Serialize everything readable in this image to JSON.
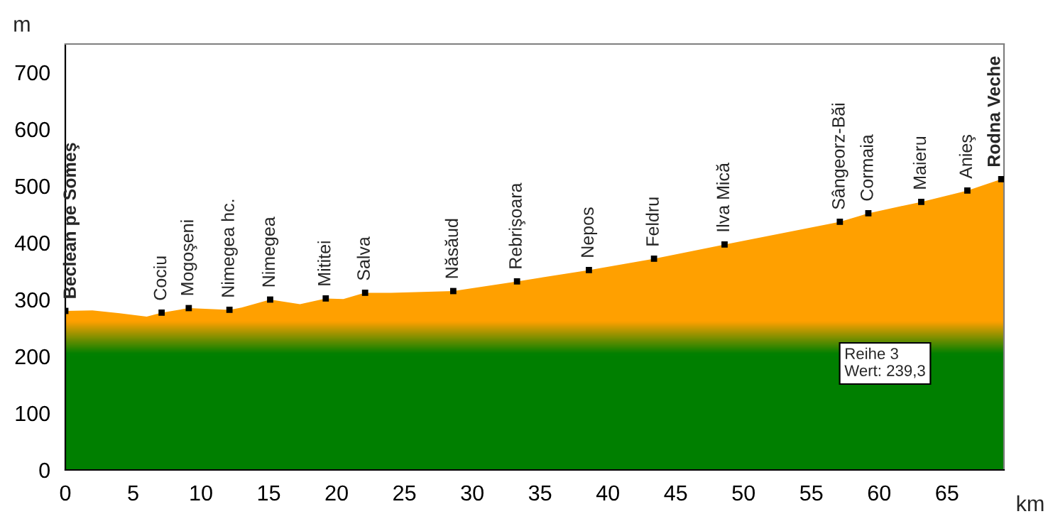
{
  "chart_data": {
    "type": "area",
    "xlabel": "km",
    "ylabel": "m",
    "xlim": [
      0,
      69.2
    ],
    "ylim": [
      0,
      750
    ],
    "xticks": [
      0,
      5,
      10,
      15,
      20,
      25,
      30,
      35,
      40,
      45,
      50,
      55,
      60,
      65
    ],
    "yticks": [
      0,
      100,
      200,
      300,
      400,
      500,
      600,
      700
    ],
    "grid": false,
    "legend": false,
    "series": [
      {
        "color": "#ffa000",
        "x": [
          0,
          2,
          4,
          6,
          7.1,
          9.1,
          12.1,
          13,
          15.1,
          17.3,
          19.2,
          20.5,
          22.1,
          24,
          28.6,
          33.3,
          38.6,
          43.4,
          48.6,
          57.1,
          59.2,
          63.1,
          66.5,
          69.0,
          69.2
        ],
        "values": [
          280,
          281,
          276,
          270,
          277,
          285,
          282,
          286,
          300,
          292,
          302,
          301,
          312,
          312,
          315,
          332,
          352,
          372,
          397,
          437,
          452,
          472,
          492,
          512,
          512
        ]
      },
      {
        "type": "scatter",
        "color": "#000000",
        "marker": "square",
        "x": [
          0,
          7.1,
          9.1,
          12.1,
          15.1,
          19.2,
          22.1,
          28.6,
          33.3,
          38.6,
          43.4,
          48.6,
          57.1,
          59.2,
          63.1,
          66.5,
          69.0
        ],
        "values": [
          280,
          277,
          285,
          282,
          300,
          302,
          312,
          315,
          332,
          352,
          372,
          397,
          437,
          452,
          472,
          492,
          512
        ]
      }
    ],
    "annotations": [
      {
        "text": "Beclean pe Someş",
        "x": 0,
        "y": 280
      },
      {
        "text": "Cociu",
        "x": 7.1,
        "y": 277
      },
      {
        "text": "Mogoşeni",
        "x": 9.1,
        "y": 285
      },
      {
        "text": "Nimegea hc.",
        "x": 12.1,
        "y": 282
      },
      {
        "text": "Nimegea",
        "x": 15.1,
        "y": 300
      },
      {
        "text": "Mititei",
        "x": 19.2,
        "y": 302
      },
      {
        "text": "Salva",
        "x": 22.1,
        "y": 312
      },
      {
        "text": "Năsăud",
        "x": 28.6,
        "y": 315
      },
      {
        "text": "Rebrişoara",
        "x": 33.3,
        "y": 332
      },
      {
        "text": "Nepos",
        "x": 38.6,
        "y": 352
      },
      {
        "text": "Feldru",
        "x": 43.4,
        "y": 372
      },
      {
        "text": "Ilva Mică",
        "x": 48.6,
        "y": 397
      },
      {
        "text": "Sângeorz-Băi",
        "x": 57.1,
        "y": 437
      },
      {
        "text": "Cormaia",
        "x": 59.2,
        "y": 452
      },
      {
        "text": "Maieru",
        "x": 63.1,
        "y": 472
      },
      {
        "text": "Anieş",
        "x": 66.5,
        "y": 492
      },
      {
        "text": "Rodna Veche",
        "x": 69.0,
        "y": 512
      },
      "Reihe 3\nWert: 239,3"
    ]
  }
}
